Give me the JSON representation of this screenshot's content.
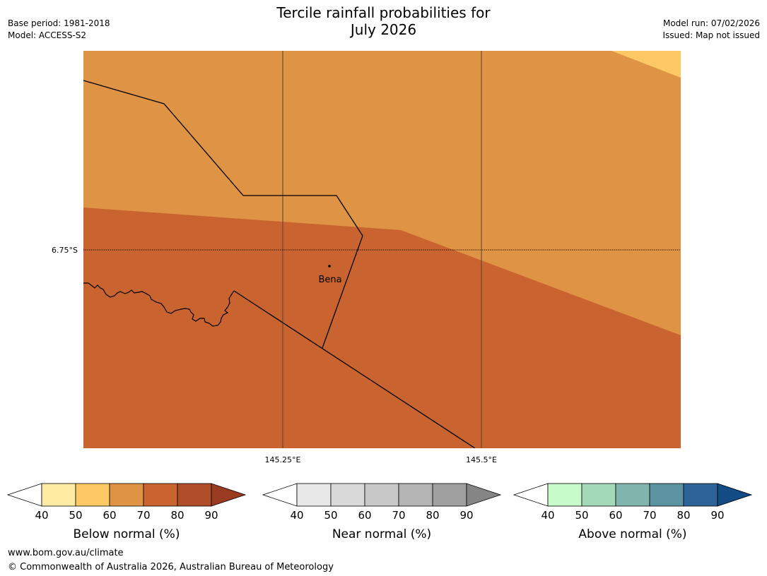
{
  "header": {
    "title_line1": "Tercile rainfall probabilities for",
    "title_line2": "July 2026",
    "base_period": "Base period: 1981-2018",
    "model": "Model: ACCESS-S2",
    "model_run": "Model run: 07/02/2026",
    "issued": "Issued: Map not issued"
  },
  "map": {
    "lat_label": "6.75°S",
    "lon_labels": [
      "145.25°E",
      "145.5°E"
    ],
    "town": "Bena",
    "colors": {
      "below_60_70": "#df9345",
      "below_70_80": "#c96430",
      "below_50_60": "#fdc964",
      "border": "#000000",
      "gridline": "#5a4030"
    }
  },
  "legends": {
    "below": {
      "label": "Below normal (%)",
      "ticks": [
        "40",
        "50",
        "60",
        "70",
        "80",
        "90"
      ],
      "colors": [
        "#ffffff",
        "#ffeba2",
        "#fdc964",
        "#df9345",
        "#c96430",
        "#b04e2a",
        "#9a3a20"
      ]
    },
    "near": {
      "label": "Near normal (%)",
      "ticks": [
        "40",
        "50",
        "60",
        "70",
        "80",
        "90"
      ],
      "colors": [
        "#ffffff",
        "#e8e8e8",
        "#d9d9d9",
        "#c8c8c8",
        "#b4b4b4",
        "#a0a0a0",
        "#858585"
      ]
    },
    "above": {
      "label": "Above normal (%)",
      "ticks": [
        "40",
        "50",
        "60",
        "70",
        "80",
        "90"
      ],
      "colors": [
        "#ffffff",
        "#c8fbca",
        "#a3d8b9",
        "#80b5ae",
        "#5b93a0",
        "#2e6399",
        "#134b85"
      ]
    }
  },
  "footer": {
    "url": "www.bom.gov.au/climate",
    "copyright": "© Commonwealth of Australia 2026, Australian Bureau of Meteorology"
  }
}
